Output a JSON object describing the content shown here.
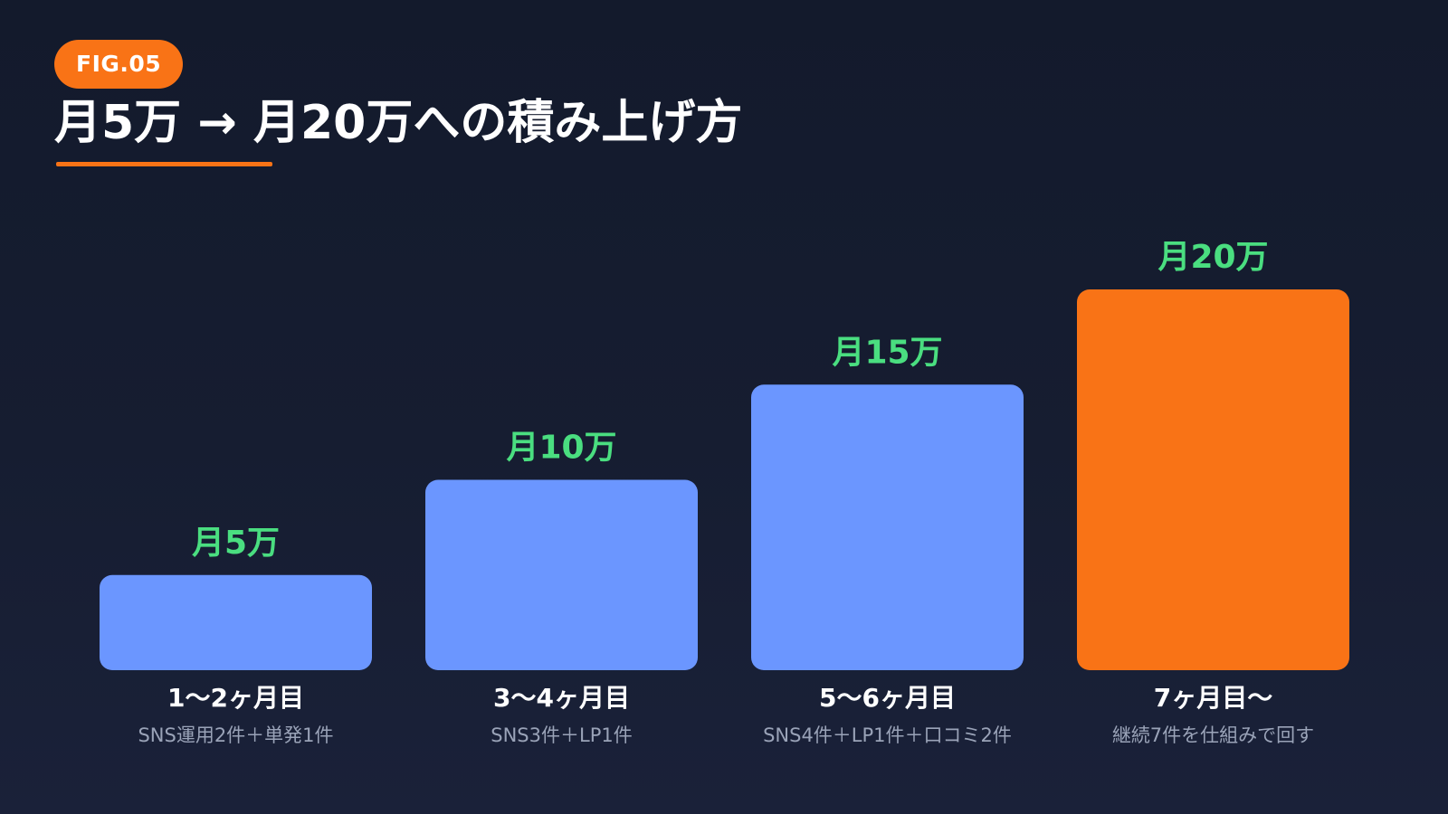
{
  "header": {
    "badge": "FIG.05",
    "title": "月5万 → 月20万への積み上げ方"
  },
  "colors": {
    "accent": "#f97316",
    "bar": "#6b96ff",
    "value_label": "#4ade80"
  },
  "chart_data": {
    "type": "bar",
    "title": "月5万 → 月20万への積み上げ方",
    "categories": [
      "1〜2ヶ月目",
      "3〜4ヶ月目",
      "5〜6ヶ月目",
      "7ヶ月目〜"
    ],
    "descriptions": [
      "SNS運用2件＋単発1件",
      "SNS3件＋LP1件",
      "SNS4件＋LP1件＋口コミ2件",
      "継続7件を仕組みで回す"
    ],
    "values": [
      5,
      10,
      15,
      20
    ],
    "value_labels": [
      "月5万",
      "月10万",
      "月15万",
      "月20万"
    ],
    "unit": "万円/月",
    "highlight_index": 3,
    "ylim": [
      0,
      20
    ],
    "grid": false,
    "legend": "none"
  }
}
